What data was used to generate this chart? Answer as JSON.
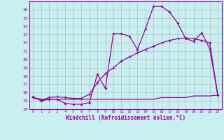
{
  "xlabel": "Windchill (Refroidissement éolien,°C)",
  "x": [
    0,
    1,
    2,
    3,
    4,
    5,
    6,
    7,
    8,
    9,
    10,
    11,
    12,
    13,
    14,
    15,
    16,
    17,
    18,
    19,
    20,
    21,
    22,
    23
  ],
  "line1": [
    25.5,
    25.0,
    25.2,
    25.2,
    24.7,
    24.6,
    24.6,
    24.8,
    28.2,
    26.5,
    33.1,
    33.1,
    32.8,
    31.2,
    33.7,
    36.4,
    36.4,
    35.7,
    34.4,
    32.5,
    32.2,
    33.2,
    31.3,
    25.7
  ],
  "line2": [
    25.4,
    25.2,
    25.2,
    25.2,
    25.2,
    25.2,
    25.2,
    25.2,
    25.2,
    25.2,
    25.2,
    25.2,
    25.2,
    25.2,
    25.2,
    25.2,
    25.4,
    25.4,
    25.4,
    25.4,
    25.6,
    25.6,
    25.6,
    25.7
  ],
  "line3": [
    25.4,
    25.1,
    25.4,
    25.5,
    25.4,
    25.3,
    25.3,
    25.8,
    27.2,
    28.3,
    29.0,
    29.8,
    30.3,
    30.8,
    31.2,
    31.6,
    32.0,
    32.3,
    32.5,
    32.6,
    32.5,
    32.3,
    32.0,
    25.7
  ],
  "line_color": "#990099",
  "bg_color": "#c8f0f0",
  "grid_color": "#b0b0b0",
  "ylim": [
    24,
    37
  ],
  "yticks": [
    24,
    25,
    26,
    27,
    28,
    29,
    30,
    31,
    32,
    33,
    34,
    35,
    36
  ],
  "xticks": [
    0,
    1,
    2,
    3,
    4,
    5,
    6,
    7,
    8,
    9,
    10,
    11,
    12,
    13,
    14,
    15,
    16,
    17,
    18,
    19,
    20,
    21,
    22,
    23
  ]
}
